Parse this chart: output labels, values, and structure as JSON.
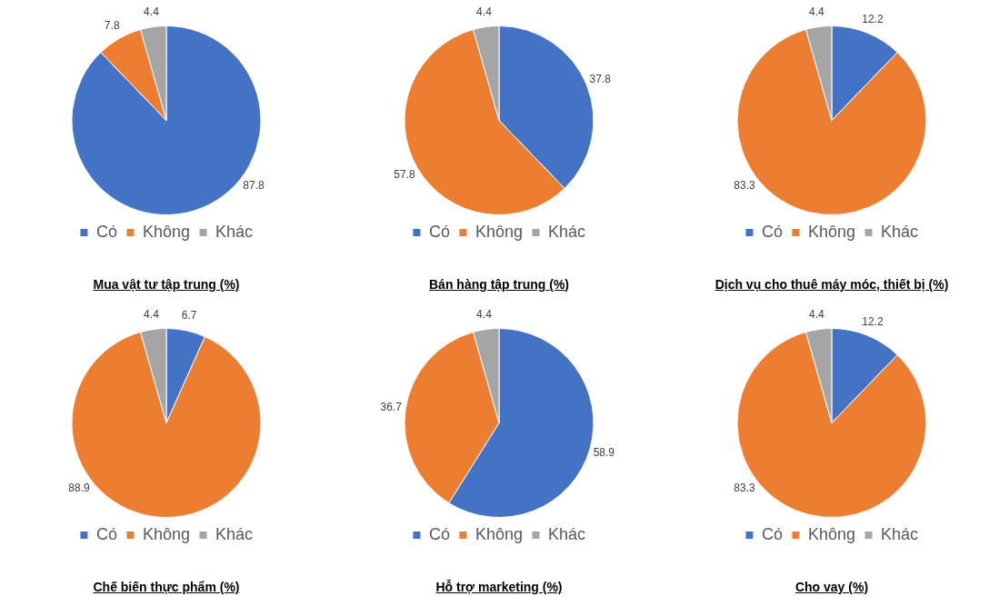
{
  "chart_data": [
    {
      "type": "pie",
      "title": "Mua vật tư tập trung (%)",
      "categories": [
        "Có",
        "Không",
        "Khác"
      ],
      "values": [
        87.8,
        7.8,
        4.4
      ],
      "colors": [
        "#4472c4",
        "#ed7d31",
        "#a5a5a5"
      ],
      "data_labels": true,
      "legend": "bottom"
    },
    {
      "type": "pie",
      "title": "Bán hàng tập trung (%)",
      "categories": [
        "Có",
        "Không",
        "Khác"
      ],
      "values": [
        37.8,
        57.8,
        4.4
      ],
      "colors": [
        "#4472c4",
        "#ed7d31",
        "#a5a5a5"
      ],
      "data_labels": true,
      "legend": "bottom"
    },
    {
      "type": "pie",
      "title": "Dịch vụ cho thuê máy móc, thiết bị (%)",
      "categories": [
        "Có",
        "Không",
        "Khác"
      ],
      "values": [
        12.2,
        83.3,
        4.4
      ],
      "colors": [
        "#4472c4",
        "#ed7d31",
        "#a5a5a5"
      ],
      "data_labels": true,
      "legend": "bottom"
    },
    {
      "type": "pie",
      "title": "Chế biến thực phẩm (%)",
      "categories": [
        "Có",
        "Không",
        "Khác"
      ],
      "values": [
        6.7,
        88.9,
        4.4
      ],
      "colors": [
        "#4472c4",
        "#ed7d31",
        "#a5a5a5"
      ],
      "data_labels": true,
      "legend": "bottom"
    },
    {
      "type": "pie",
      "title": "Hỗ trợ marketing (%)",
      "categories": [
        "Có",
        "Không",
        "Khác"
      ],
      "values": [
        58.9,
        36.7,
        4.4
      ],
      "colors": [
        "#4472c4",
        "#ed7d31",
        "#a5a5a5"
      ],
      "data_labels": true,
      "legend": "bottom"
    },
    {
      "type": "pie",
      "title": "Cho vay (%)",
      "categories": [
        "Có",
        "Không",
        "Khác"
      ],
      "values": [
        12.2,
        83.3,
        4.4
      ],
      "colors": [
        "#4472c4",
        "#ed7d31",
        "#a5a5a5"
      ],
      "data_labels": true,
      "legend": "bottom"
    }
  ]
}
